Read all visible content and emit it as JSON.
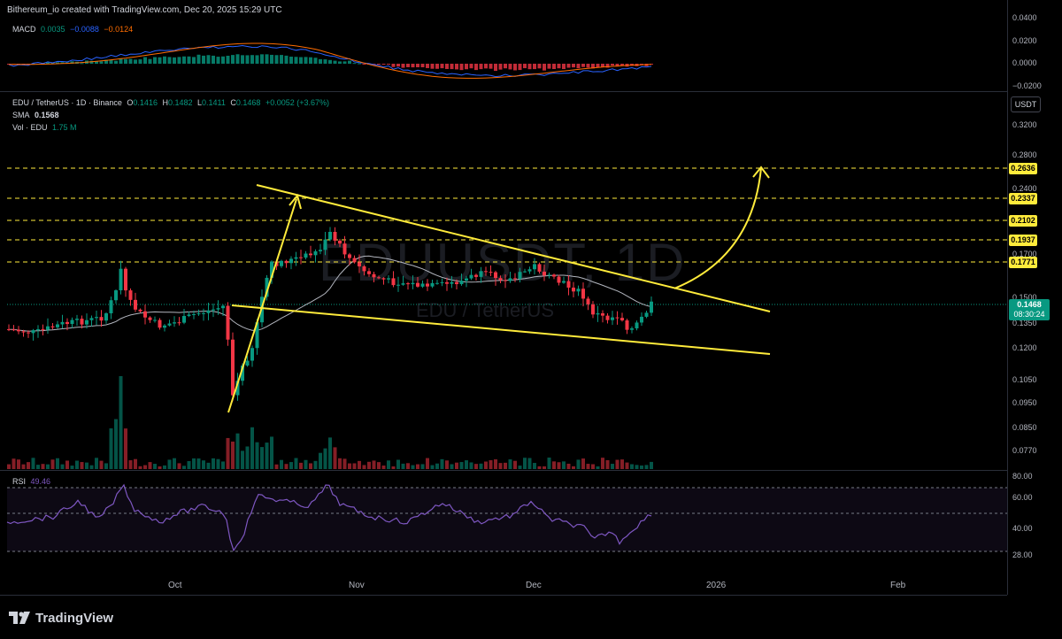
{
  "header": {
    "text": "Bithereum_io created with TradingView.com, Dec 20, 2025 15:29 UTC"
  },
  "macd_legend": {
    "label": "MACD",
    "v1": "0.0035",
    "v2": "−0.0088",
    "v3": "−0.0124"
  },
  "price_legend": {
    "symbol": "EDU / TetherUS · 1D · Binance",
    "o_label": "O",
    "o": "0.1416",
    "h_label": "H",
    "h": "0.1482",
    "l_label": "L",
    "l": "0.1411",
    "c_label": "C",
    "c": "0.1468",
    "change": "+0.0052 (+3.67%)",
    "sma_label": "SMA",
    "sma": "0.1568",
    "vol_label": "Vol · EDU",
    "vol": "1.75 M"
  },
  "rsi_legend": {
    "label": "RSI",
    "value": "49.46"
  },
  "watermark": {
    "line1": "EDUUSDT, 1D",
    "line2": "EDU / TetherUS"
  },
  "currency_button": "USDT",
  "last_price": {
    "price": "0.1468",
    "countdown": "08:30:24"
  },
  "colors": {
    "up": "#089981",
    "down": "#f23645",
    "level": "#ffeb3b",
    "macd": "#2962ff",
    "signal": "#ff6d00",
    "rsi": "#7e57c2",
    "sma": "#b2b5be"
  },
  "footer": {
    "logo_text": "TradingView",
    "logo_icon": "tradingview-logo-icon"
  },
  "chart_data": {
    "type": "candlestick",
    "symbol": "EDU / TetherUS",
    "interval": "1D",
    "exchange": "Binance",
    "price_axis_ticks": [
      "0.3200",
      "0.2800",
      "0.2400",
      "0.2000",
      "0.1700",
      "0.1500",
      "0.1350",
      "0.1200",
      "0.1050",
      "0.0950",
      "0.0850",
      "0.0770"
    ],
    "macd_axis_ticks": [
      "0.0400",
      "0.0200",
      "0.0000",
      "−0.0200"
    ],
    "rsi_axis_ticks": [
      "80.00",
      "60.00",
      "40.00",
      "28.00"
    ],
    "x_labels": [
      "Oct",
      "Nov",
      "Dec",
      "2026",
      "Feb"
    ],
    "horizontal_levels": [
      "0.2636",
      "0.2337",
      "0.2102",
      "0.1937",
      "0.1771"
    ],
    "rsi_band": [
      30,
      70
    ],
    "rsi_last": 49.46,
    "sma_last": 0.1568,
    "last_close": 0.1468
  }
}
